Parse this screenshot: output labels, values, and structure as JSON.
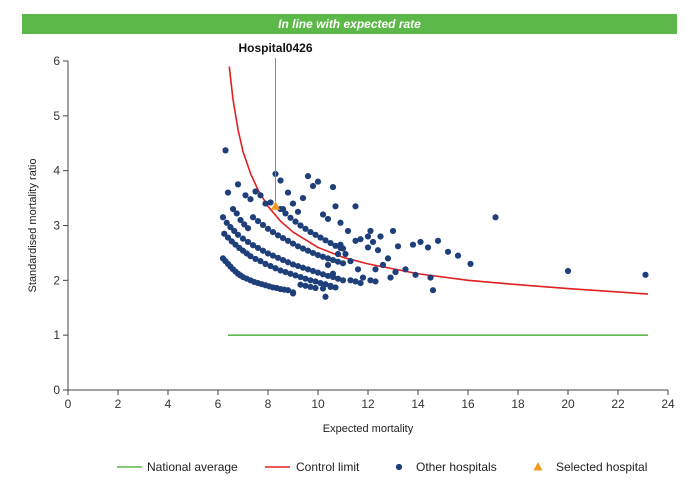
{
  "banner": {
    "text": "In line with expected rate",
    "color": "#5cb848"
  },
  "chart_data": {
    "type": "scatter",
    "xlabel": "Expected mortality",
    "ylabel": "Standardised mortality ratio",
    "xlim": [
      0,
      24
    ],
    "ylim": [
      0,
      6
    ],
    "x_ticks": [
      "0",
      "2",
      "4",
      "6",
      "8",
      "10",
      "12",
      "14",
      "16",
      "18",
      "20",
      "22",
      "24"
    ],
    "y_ticks": [
      "0",
      "1",
      "2",
      "3",
      "4",
      "5",
      "6"
    ],
    "grid": false,
    "legend_position": "bottom",
    "annotation": {
      "label": "Hospital0426",
      "x": 8.3,
      "y": 3.35
    },
    "colors": {
      "national_average": "#5cb848",
      "control_limit": "#e02020",
      "other_hospitals": "#1f3f7a",
      "selected_hospital": "#f39a1c"
    },
    "series": [
      {
        "name": "National average",
        "kind": "line",
        "x": [
          6.4,
          23.2
        ],
        "y": [
          1.0,
          1.0
        ]
      },
      {
        "name": "Control limit",
        "kind": "line",
        "x": [
          6.45,
          6.6,
          6.8,
          7.0,
          7.3,
          7.6,
          8.0,
          8.5,
          9.0,
          10.0,
          11.0,
          12.0,
          14.0,
          16.0,
          18.0,
          20.0,
          23.2
        ],
        "y": [
          5.9,
          5.3,
          4.75,
          4.35,
          3.95,
          3.65,
          3.35,
          3.08,
          2.88,
          2.6,
          2.42,
          2.3,
          2.12,
          2.0,
          1.92,
          1.85,
          1.75
        ]
      },
      {
        "name": "Other hospitals",
        "kind": "scatter",
        "points": [
          [
            6.2,
            2.4
          ],
          [
            6.3,
            2.35
          ],
          [
            6.4,
            2.3
          ],
          [
            6.5,
            2.25
          ],
          [
            6.6,
            2.2
          ],
          [
            6.7,
            2.16
          ],
          [
            6.8,
            2.12
          ],
          [
            6.9,
            2.09
          ],
          [
            7.0,
            2.06
          ],
          [
            7.15,
            2.03
          ],
          [
            7.3,
            2.0
          ],
          [
            7.45,
            1.97
          ],
          [
            7.6,
            1.95
          ],
          [
            7.75,
            1.93
          ],
          [
            7.9,
            1.91
          ],
          [
            8.05,
            1.89
          ],
          [
            8.2,
            1.87
          ],
          [
            8.35,
            1.86
          ],
          [
            8.5,
            1.84
          ],
          [
            8.65,
            1.83
          ],
          [
            8.8,
            1.82
          ],
          [
            6.25,
            2.85
          ],
          [
            6.4,
            2.78
          ],
          [
            6.55,
            2.71
          ],
          [
            6.7,
            2.65
          ],
          [
            6.85,
            2.59
          ],
          [
            7.0,
            2.54
          ],
          [
            7.15,
            2.49
          ],
          [
            7.3,
            2.44
          ],
          [
            7.5,
            2.39
          ],
          [
            7.7,
            2.35
          ],
          [
            7.9,
            2.3
          ],
          [
            8.1,
            2.26
          ],
          [
            8.3,
            2.22
          ],
          [
            8.5,
            2.18
          ],
          [
            8.7,
            2.15
          ],
          [
            8.9,
            2.12
          ],
          [
            9.1,
            2.09
          ],
          [
            9.3,
            2.06
          ],
          [
            9.5,
            2.03
          ],
          [
            9.7,
            2.0
          ],
          [
            9.9,
            1.98
          ],
          [
            10.1,
            1.95
          ],
          [
            10.3,
            1.93
          ],
          [
            10.5,
            1.9
          ],
          [
            6.2,
            3.15
          ],
          [
            6.35,
            3.05
          ],
          [
            6.5,
            2.97
          ],
          [
            6.65,
            2.9
          ],
          [
            6.8,
            2.83
          ],
          [
            7.0,
            2.76
          ],
          [
            7.2,
            2.7
          ],
          [
            7.4,
            2.64
          ],
          [
            7.6,
            2.59
          ],
          [
            7.8,
            2.54
          ],
          [
            8.0,
            2.49
          ],
          [
            8.2,
            2.45
          ],
          [
            8.4,
            2.41
          ],
          [
            8.6,
            2.37
          ],
          [
            8.8,
            2.33
          ],
          [
            9.0,
            2.29
          ],
          [
            9.2,
            2.26
          ],
          [
            9.4,
            2.23
          ],
          [
            9.6,
            2.2
          ],
          [
            9.8,
            2.17
          ],
          [
            10.0,
            2.14
          ],
          [
            10.2,
            2.11
          ],
          [
            10.4,
            2.08
          ],
          [
            10.6,
            2.06
          ],
          [
            10.8,
            2.03
          ],
          [
            11.0,
            2.0
          ],
          [
            7.4,
            3.15
          ],
          [
            7.6,
            3.08
          ],
          [
            7.8,
            3.01
          ],
          [
            8.0,
            2.94
          ],
          [
            8.2,
            2.88
          ],
          [
            8.4,
            2.82
          ],
          [
            8.6,
            2.77
          ],
          [
            8.8,
            2.72
          ],
          [
            9.0,
            2.67
          ],
          [
            9.2,
            2.62
          ],
          [
            9.4,
            2.58
          ],
          [
            9.6,
            2.54
          ],
          [
            9.8,
            2.5
          ],
          [
            10.0,
            2.46
          ],
          [
            10.2,
            2.43
          ],
          [
            10.4,
            2.4
          ],
          [
            10.6,
            2.37
          ],
          [
            10.8,
            2.34
          ],
          [
            11.0,
            2.31
          ],
          [
            8.5,
            3.3
          ],
          [
            8.7,
            3.22
          ],
          [
            8.9,
            3.14
          ],
          [
            9.1,
            3.07
          ],
          [
            9.3,
            3.0
          ],
          [
            9.5,
            2.94
          ],
          [
            9.7,
            2.88
          ],
          [
            9.9,
            2.83
          ],
          [
            10.1,
            2.78
          ],
          [
            10.3,
            2.73
          ],
          [
            10.5,
            2.68
          ],
          [
            10.7,
            2.63
          ],
          [
            10.9,
            2.59
          ],
          [
            6.3,
            4.37
          ],
          [
            6.4,
            3.6
          ],
          [
            6.8,
            3.75
          ],
          [
            7.1,
            3.55
          ],
          [
            7.3,
            3.48
          ],
          [
            7.5,
            3.62
          ],
          [
            7.7,
            3.55
          ],
          [
            7.9,
            3.4
          ],
          [
            8.1,
            3.42
          ],
          [
            8.3,
            3.94
          ],
          [
            8.5,
            3.82
          ],
          [
            8.6,
            3.3
          ],
          [
            8.8,
            3.6
          ],
          [
            9.0,
            3.4
          ],
          [
            9.2,
            3.25
          ],
          [
            9.4,
            3.5
          ],
          [
            9.6,
            3.9
          ],
          [
            9.8,
            3.72
          ],
          [
            10.0,
            3.8
          ],
          [
            10.2,
            3.2
          ],
          [
            10.4,
            3.12
          ],
          [
            10.6,
            3.7
          ],
          [
            10.7,
            3.35
          ],
          [
            10.9,
            3.05
          ],
          [
            11.2,
            2.9
          ],
          [
            11.5,
            3.35
          ],
          [
            11.7,
            2.75
          ],
          [
            12.0,
            2.6
          ],
          [
            12.2,
            2.7
          ],
          [
            12.4,
            2.55
          ],
          [
            6.6,
            3.3
          ],
          [
            6.75,
            3.22
          ],
          [
            6.9,
            3.1
          ],
          [
            7.05,
            3.02
          ],
          [
            7.2,
            2.95
          ],
          [
            10.9,
            2.65
          ],
          [
            11.1,
            2.48
          ],
          [
            11.3,
            2.35
          ],
          [
            11.5,
            2.72
          ],
          [
            11.6,
            2.2
          ],
          [
            11.8,
            2.05
          ],
          [
            12.0,
            2.8
          ],
          [
            12.1,
            2.9
          ],
          [
            12.3,
            2.2
          ],
          [
            12.5,
            2.8
          ],
          [
            12.6,
            2.28
          ],
          [
            12.8,
            2.4
          ],
          [
            12.9,
            2.05
          ],
          [
            13.0,
            2.9
          ],
          [
            13.1,
            2.15
          ],
          [
            13.2,
            2.62
          ],
          [
            10.4,
            2.28
          ],
          [
            10.6,
            2.12
          ],
          [
            10.8,
            2.48
          ],
          [
            11.0,
            2.58
          ],
          [
            11.3,
            2.0
          ],
          [
            11.5,
            1.98
          ],
          [
            11.7,
            1.95
          ],
          [
            12.1,
            2.0
          ],
          [
            12.3,
            1.98
          ],
          [
            9.0,
            1.78
          ],
          [
            9.3,
            1.92
          ],
          [
            9.5,
            1.9
          ],
          [
            9.7,
            1.88
          ],
          [
            9.9,
            1.86
          ],
          [
            10.2,
            1.85
          ],
          [
            10.3,
            1.7
          ],
          [
            10.5,
            1.88
          ],
          [
            10.7,
            1.87
          ],
          [
            9.0,
            1.76
          ],
          [
            13.5,
            2.2
          ],
          [
            13.8,
            2.65
          ],
          [
            14.1,
            2.7
          ],
          [
            14.4,
            2.6
          ],
          [
            14.5,
            2.05
          ],
          [
            14.6,
            1.82
          ],
          [
            14.8,
            2.72
          ],
          [
            15.2,
            2.52
          ],
          [
            15.6,
            2.45
          ],
          [
            16.1,
            2.3
          ],
          [
            17.1,
            3.15
          ],
          [
            13.9,
            2.1
          ],
          [
            20.0,
            2.17
          ],
          [
            23.1,
            2.1
          ]
        ]
      },
      {
        "name": "Selected hospital",
        "kind": "scatter",
        "points": [
          [
            8.3,
            3.35
          ]
        ]
      }
    ]
  }
}
